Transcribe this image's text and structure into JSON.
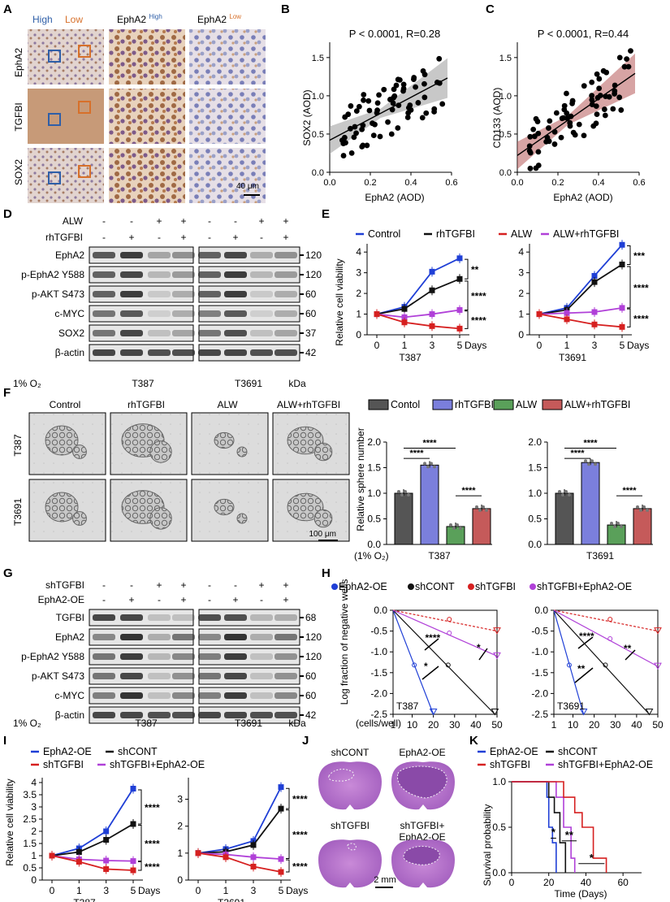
{
  "colors": {
    "blue": "#1f3fd6",
    "black": "#111111",
    "red": "#d62020",
    "purple": "#b040d8",
    "grey": "#555555",
    "lightblue": "#7b7fdc",
    "green": "#5aa05a",
    "salmon": "#c55a5a",
    "stain": "#a8643a",
    "hema": "#7a88b8",
    "band": "#2a2a2a",
    "highbox": "#2f5fa8",
    "lowbox": "#d7702a"
  },
  "panelA": {
    "letter": "A",
    "high": "High",
    "low": "Low",
    "col2": "EphA2",
    "col2sup": "High",
    "col3": "EphA2",
    "col3sup": "Low",
    "rows": [
      "EphA2",
      "TGFBI",
      "SOX2"
    ],
    "scale": "40 μm"
  },
  "panelB": {
    "letter": "B",
    "stat": "P < 0.0001, R=0.28",
    "ylabel": "SOX2 (AOD)",
    "xlabel": "EphA2 (AOD)",
    "xticks": [
      "0.0",
      "0.2",
      "0.4",
      "0.6"
    ],
    "yticks": [
      "0.0",
      "0.5",
      "1.0",
      "1.5"
    ]
  },
  "panelC": {
    "letter": "C",
    "stat": "P < 0.0001, R=0.44",
    "ylabel": "CD133 (AOD)",
    "xlabel": "EphA2 (AOD)",
    "xticks": [
      "0.0",
      "0.2",
      "0.4",
      "0.6"
    ],
    "yticks": [
      "0.0",
      "0.5",
      "1.0",
      "1.5"
    ]
  },
  "panelD": {
    "letter": "D",
    "treat1": "ALW",
    "treat2": "rhTGFBI",
    "signs1": [
      "-",
      "-",
      "+",
      "+",
      "-",
      "-",
      "+",
      "+"
    ],
    "signs2": [
      "-",
      "+",
      "-",
      "+",
      "-",
      "+",
      "-",
      "+"
    ],
    "proteins": [
      "EphA2",
      "p-EphA2 Y588",
      "p-AKT S473",
      "c-MYC",
      "SOX2",
      "β-actin"
    ],
    "kda": [
      "120",
      "120",
      "60",
      "60",
      "37",
      "42"
    ],
    "oxygen": "1% O₂",
    "lines": [
      "T387",
      "T3691"
    ],
    "unit": "kDa"
  },
  "panelE": {
    "letter": "E",
    "legend": [
      "Control",
      "rhTGFBI",
      "ALW",
      "ALW+rhTGFBI"
    ],
    "ylabel": "Relative cell viability",
    "days": "Days",
    "lines": [
      "T387",
      "T3691"
    ],
    "xticks": [
      "0",
      "1",
      "3",
      "5"
    ],
    "yticks": [
      "0",
      "1",
      "2",
      "3",
      "4"
    ],
    "sig1": [
      "**",
      "****",
      "****"
    ],
    "sig2": [
      "***",
      "****",
      "****"
    ]
  },
  "panelF": {
    "letter": "F",
    "groups": [
      "Control",
      "rhTGFBI",
      "ALW",
      "ALW+rhTGFBI"
    ],
    "rows": [
      "T387",
      "T3691"
    ],
    "scale": "100 μm",
    "legend": [
      "Contol",
      "rhTGFBI",
      "ALW",
      "ALW+rhTGFBI"
    ],
    "ylabel": "Relative sphere number",
    "oxygen": "(1% O₂)",
    "lines": [
      "T387",
      "T3691"
    ],
    "yticks": [
      "0.0",
      "0.5",
      "1.0",
      "1.5",
      "2.0"
    ],
    "sig": "****"
  },
  "panelG": {
    "letter": "G",
    "treat1": "shTGFBI",
    "treat2": "EphA2-OE",
    "signs1": [
      "-",
      "-",
      "+",
      "+",
      "-",
      "-",
      "+",
      "+"
    ],
    "signs2": [
      "-",
      "+",
      "-",
      "+",
      "-",
      "+",
      "-",
      "+"
    ],
    "proteins": [
      "TGFBI",
      "EphA2",
      "p-EphA2 Y588",
      "p-AKT S473",
      "c-MYC",
      "β-actin"
    ],
    "kda": [
      "68",
      "120",
      "120",
      "60",
      "60",
      "42"
    ],
    "oxygen": "1% O₂",
    "lines": [
      "T387",
      "T3691"
    ],
    "unit": "kDa"
  },
  "panelH": {
    "letter": "H",
    "legend": [
      "EphA2-OE",
      "shCONT",
      "shTGFBI",
      "shTGFBI+EphA2-OE"
    ],
    "ylabel": "Log fraction of negative wells",
    "xlabel": "(cells/well)",
    "xticks": [
      "1",
      "10",
      "20",
      "30",
      "40",
      "50"
    ],
    "yticks": [
      "0.0",
      "-0.5",
      "-1.0",
      "-1.5",
      "-2.0",
      "-2.5"
    ],
    "lines": [
      "T387",
      "T3691"
    ],
    "sig1": [
      "****",
      "*",
      "*"
    ],
    "sig2": [
      "****",
      "**",
      "**"
    ]
  },
  "panelI": {
    "letter": "I",
    "legend": [
      "EphA2-OE",
      "shCONT",
      "shTGFBI",
      "shTGFBI+EphA2-OE"
    ],
    "ylabel": "Relative cell viability",
    "days": "Days",
    "lines": [
      "T387",
      "T3691"
    ],
    "xticks": [
      "0",
      "1",
      "3",
      "5"
    ],
    "yticks1": [
      "0",
      "0.5",
      "1",
      "1.5",
      "2",
      "2.5",
      "3",
      "3.5",
      "4"
    ],
    "yticks2": [
      "0",
      "1",
      "2",
      "3"
    ],
    "sig": "****"
  },
  "panelJ": {
    "letter": "J",
    "labels": [
      "shCONT",
      "EphA2-OE",
      "shTGFBI",
      "shTGFBI+",
      "EphA2-OE"
    ],
    "scale": "2 mm"
  },
  "panelK": {
    "letter": "K",
    "legend": [
      "EphA2-OE",
      "shCONT",
      "shTGFBI",
      "shTGFBI+EphA2-OE"
    ],
    "ylabel": "Survival probability",
    "xlabel": "Time (Days)",
    "xticks": [
      "0",
      "20",
      "40",
      "60"
    ],
    "yticks": [
      "0.0",
      "0.5",
      "1.0"
    ],
    "sig": [
      "*",
      "**",
      "*"
    ]
  }
}
